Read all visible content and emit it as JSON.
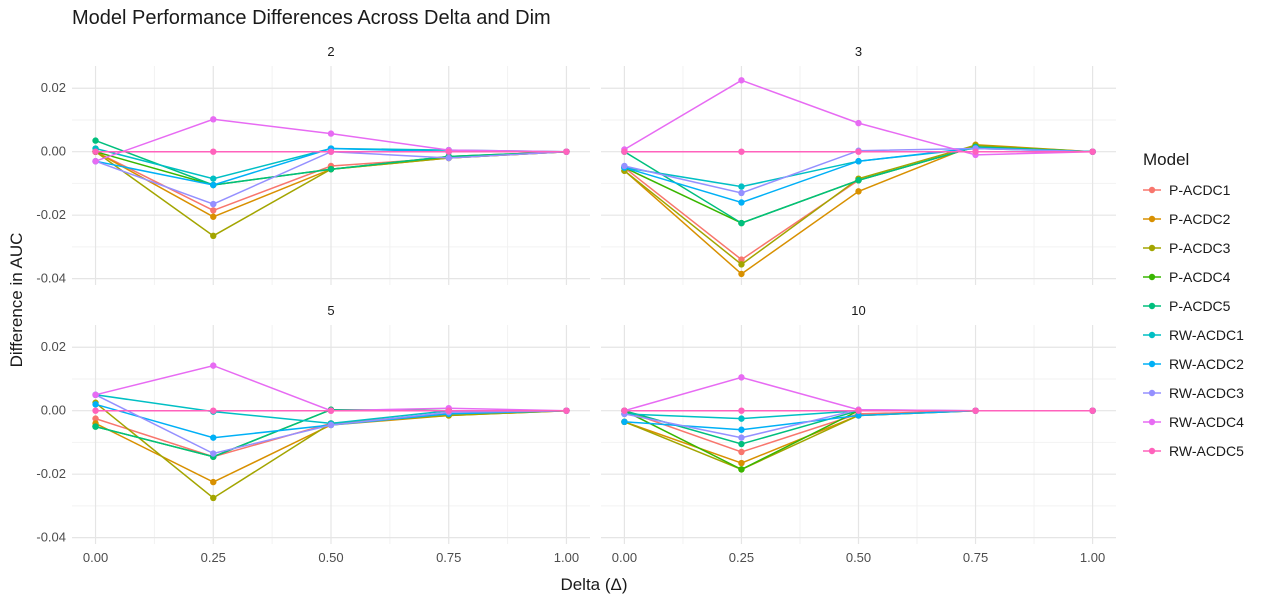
{
  "chart_data": {
    "type": "line",
    "title": "Model Performance Differences Across Delta and Dim",
    "xlabel": "Delta (Δ)",
    "ylabel": "Difference in AUC",
    "x": [
      0,
      0.25,
      0.5,
      0.75,
      1
    ],
    "x_ticks": [
      "0.00",
      "0.25",
      "0.50",
      "0.75",
      "1.00"
    ],
    "y_ticks": [
      "0.02",
      "0.00",
      "-0.02",
      "-0.04"
    ],
    "y_tick_values": [
      0.02,
      0,
      -0.02,
      -0.04
    ],
    "ylim": [
      -0.042,
      0.027
    ],
    "xlim": [
      -0.05,
      1.05
    ],
    "grid": true,
    "legend": {
      "title": "Model",
      "position": "right"
    },
    "series_styles": [
      {
        "name": "P-ACDC1",
        "color": "#F8766D"
      },
      {
        "name": "P-ACDC2",
        "color": "#D89000"
      },
      {
        "name": "P-ACDC3",
        "color": "#A3A500"
      },
      {
        "name": "P-ACDC4",
        "color": "#39B600"
      },
      {
        "name": "P-ACDC5",
        "color": "#00BF7D"
      },
      {
        "name": "RW-ACDC1",
        "color": "#00BFC4"
      },
      {
        "name": "RW-ACDC2",
        "color": "#00B0F6"
      },
      {
        "name": "RW-ACDC3",
        "color": "#9590FF"
      },
      {
        "name": "RW-ACDC4",
        "color": "#E76BF3"
      },
      {
        "name": "RW-ACDC5",
        "color": "#FF62BC"
      }
    ],
    "panels": [
      {
        "label": "2",
        "series": [
          {
            "name": "P-ACDC1",
            "values": [
              0.0,
              -0.0185,
              -0.0045,
              -0.002,
              0
            ]
          },
          {
            "name": "P-ACDC2",
            "values": [
              0.0,
              -0.0205,
              -0.0055,
              -0.002,
              0
            ]
          },
          {
            "name": "P-ACDC3",
            "values": [
              0.0,
              -0.0265,
              -0.0055,
              -0.002,
              0
            ]
          },
          {
            "name": "P-ACDC4",
            "values": [
              0.0,
              -0.0105,
              -0.0055,
              -0.0015,
              0
            ]
          },
          {
            "name": "P-ACDC5",
            "values": [
              0.0035,
              -0.0105,
              -0.0055,
              -0.0015,
              0
            ]
          },
          {
            "name": "RW-ACDC1",
            "values": [
              0.001,
              -0.0085,
              0.001,
              0.0005,
              0
            ]
          },
          {
            "name": "RW-ACDC2",
            "values": [
              -0.003,
              -0.0105,
              0.001,
              0.0,
              0
            ]
          },
          {
            "name": "RW-ACDC3",
            "values": [
              -0.003,
              -0.0165,
              0.0,
              -0.002,
              0
            ]
          },
          {
            "name": "RW-ACDC4",
            "values": [
              -0.003,
              0.0102,
              0.0057,
              0.0005,
              0
            ]
          },
          {
            "name": "RW-ACDC5",
            "values": [
              0.0,
              0.0,
              0.0,
              0.0,
              0
            ]
          }
        ]
      },
      {
        "label": "3",
        "series": [
          {
            "name": "P-ACDC1",
            "values": [
              -0.005,
              -0.034,
              -0.009,
              0.0015,
              0
            ]
          },
          {
            "name": "P-ACDC2",
            "values": [
              -0.006,
              -0.0385,
              -0.0125,
              0.0022,
              0
            ]
          },
          {
            "name": "P-ACDC3",
            "values": [
              -0.006,
              -0.0355,
              -0.0085,
              0.002,
              0
            ]
          },
          {
            "name": "P-ACDC4",
            "values": [
              -0.005,
              -0.0225,
              -0.009,
              0.0015,
              0
            ]
          },
          {
            "name": "P-ACDC5",
            "values": [
              0.0,
              -0.0225,
              -0.009,
              0.0015,
              0
            ]
          },
          {
            "name": "RW-ACDC1",
            "values": [
              -0.005,
              -0.011,
              -0.003,
              0.001,
              0
            ]
          },
          {
            "name": "RW-ACDC2",
            "values": [
              -0.005,
              -0.016,
              -0.003,
              0.0012,
              0
            ]
          },
          {
            "name": "RW-ACDC3",
            "values": [
              -0.0045,
              -0.013,
              0.0003,
              0.001,
              0
            ]
          },
          {
            "name": "RW-ACDC4",
            "values": [
              0.0007,
              0.0225,
              0.009,
              -0.001,
              0
            ]
          },
          {
            "name": "RW-ACDC5",
            "values": [
              0.0,
              0.0,
              0.0,
              0.0,
              0
            ]
          }
        ]
      },
      {
        "label": "5",
        "series": [
          {
            "name": "P-ACDC1",
            "values": [
              -0.0025,
              -0.0145,
              -0.004,
              -0.001,
              0
            ]
          },
          {
            "name": "P-ACDC2",
            "values": [
              -0.004,
              -0.0225,
              -0.0045,
              -0.0015,
              0
            ]
          },
          {
            "name": "P-ACDC3",
            "values": [
              0.0025,
              -0.0275,
              -0.004,
              -0.0015,
              0
            ]
          },
          {
            "name": "P-ACDC4",
            "values": [
              -0.005,
              -0.0145,
              0.0003,
              0.0,
              0
            ]
          },
          {
            "name": "P-ACDC5",
            "values": [
              -0.005,
              -0.0145,
              0.0003,
              0.0,
              0
            ]
          },
          {
            "name": "RW-ACDC1",
            "values": [
              0.005,
              -0.0003,
              -0.004,
              0.0,
              0
            ]
          },
          {
            "name": "RW-ACDC2",
            "values": [
              0.002,
              -0.0085,
              -0.0045,
              -0.001,
              0
            ]
          },
          {
            "name": "RW-ACDC3",
            "values": [
              0.005,
              -0.0135,
              -0.0045,
              -0.0005,
              0
            ]
          },
          {
            "name": "RW-ACDC4",
            "values": [
              0.005,
              0.0142,
              0.0,
              0.0008,
              0
            ]
          },
          {
            "name": "RW-ACDC5",
            "values": [
              0.0,
              0.0,
              0.0,
              0.0,
              0
            ]
          }
        ]
      },
      {
        "label": "10",
        "series": [
          {
            "name": "P-ACDC1",
            "values": [
              0.0,
              -0.013,
              -0.001,
              0.0,
              0
            ]
          },
          {
            "name": "P-ACDC2",
            "values": [
              -0.0035,
              -0.0165,
              -0.0015,
              0.0,
              0
            ]
          },
          {
            "name": "P-ACDC3",
            "values": [
              -0.0035,
              -0.0185,
              -0.0015,
              0.0,
              0
            ]
          },
          {
            "name": "P-ACDC4",
            "values": [
              0.0,
              -0.0185,
              0.0,
              0.0,
              0
            ]
          },
          {
            "name": "P-ACDC5",
            "values": [
              0.0,
              -0.0105,
              0.0,
              0.0,
              0
            ]
          },
          {
            "name": "RW-ACDC1",
            "values": [
              -0.001,
              -0.0025,
              0.0,
              0.0,
              0
            ]
          },
          {
            "name": "RW-ACDC2",
            "values": [
              -0.0035,
              -0.006,
              -0.0015,
              0.0,
              0
            ]
          },
          {
            "name": "RW-ACDC3",
            "values": [
              -0.001,
              -0.0085,
              0.0003,
              0.0,
              0
            ]
          },
          {
            "name": "RW-ACDC4",
            "values": [
              0.0,
              0.0105,
              0.0003,
              0.0,
              0
            ]
          },
          {
            "name": "RW-ACDC5",
            "values": [
              0.0,
              0.0,
              0.0,
              0.0,
              0
            ]
          }
        ]
      }
    ]
  }
}
